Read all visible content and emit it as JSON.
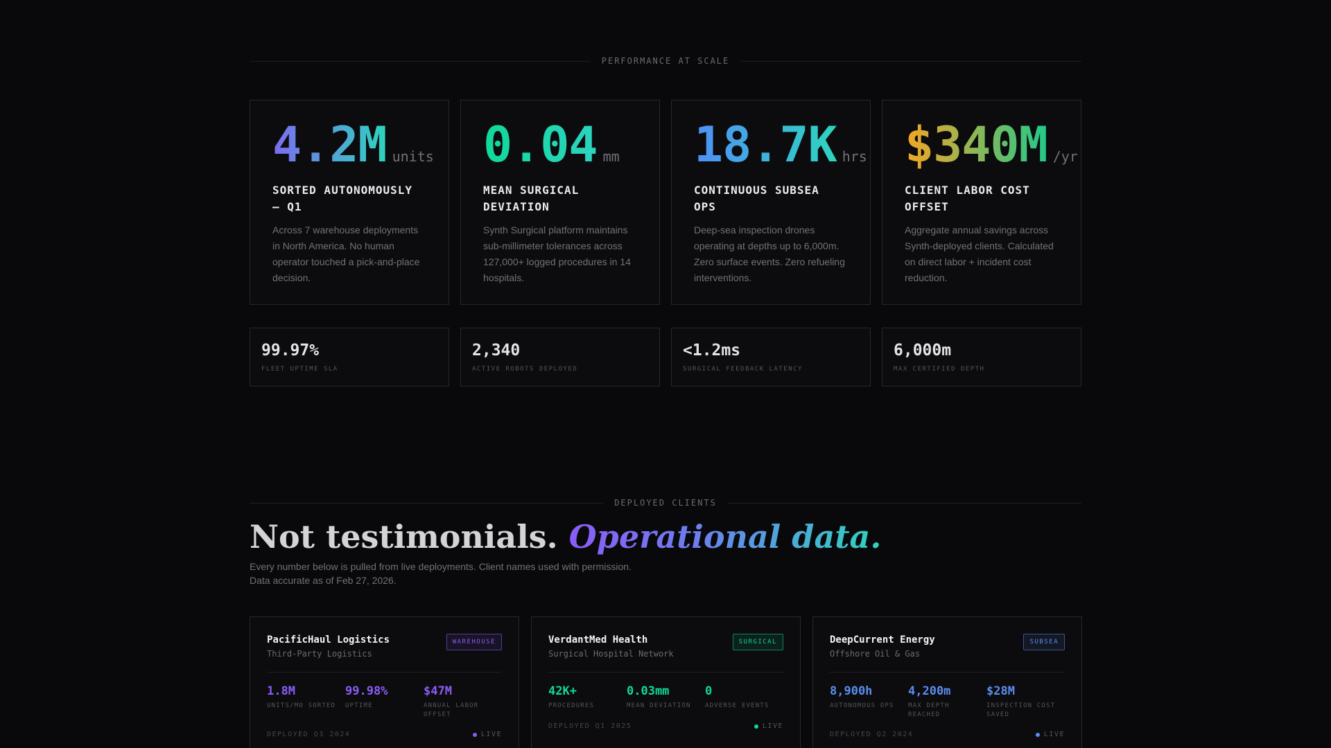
{
  "performance": {
    "section_label": "PERFORMANCE AT SCALE",
    "cards": [
      {
        "value": "4.2M",
        "unit": "units",
        "title": "SORTED AUTONOMOUSLY — Q1",
        "desc": "Across 7 warehouse deployments in North America. No human operator touched a pick-and-place decision.",
        "gradient": [
          "#7c6cf0",
          "#2dd4bf"
        ]
      },
      {
        "value": "0.04",
        "unit": "mm",
        "title": "MEAN SURGICAL DEVIATION",
        "desc": "Synth Surgical platform maintains sub-millimeter tolerances across 127,000+ logged procedures in 14 hospitals.",
        "gradient": [
          "#10d89a",
          "#2dd4bf"
        ]
      },
      {
        "value": "18.7K",
        "unit": "hrs",
        "title": "CONTINUOUS SUBSEA OPS",
        "desc": "Deep-sea inspection drones operating at depths up to 6,000m. Zero surface events. Zero refueling interventions.",
        "gradient": [
          "#4f8ff7",
          "#2dd4bf"
        ]
      },
      {
        "value": "$340M",
        "unit": "/yr",
        "title": "CLIENT LABOR COST OFFSET",
        "desc": "Aggregate annual savings across Synth-deployed clients. Calculated on direct labor + incident cost reduction.",
        "gradient": [
          "#f5a524",
          "#22c98a"
        ]
      }
    ],
    "metrics": [
      {
        "value": "99.97%",
        "label": "FLEET UPTIME SLA"
      },
      {
        "value": "2,340",
        "label": "ACTIVE ROBOTS DEPLOYED"
      },
      {
        "value": "<1.2ms",
        "label": "SURGICAL FEEDBACK LATENCY"
      },
      {
        "value": "6,000m",
        "label": "MAX CERTIFIED DEPTH"
      }
    ]
  },
  "clients": {
    "section_label": "DEPLOYED CLIENTS",
    "heading_plain": "Not testimonials. ",
    "heading_emphasis": "Operational data.",
    "sub_line1": "Every number below is pulled from live deployments. Client names used with permission.",
    "sub_line2": "Data accurate as of Feb 27, 2026.",
    "items": [
      {
        "name": "PacificHaul Logistics",
        "type": "Third-Party Logistics",
        "badge": "WAREHOUSE",
        "accent": "#8b5cf6",
        "metrics": [
          {
            "value": "1.8M",
            "label": "UNITS/MO SORTED"
          },
          {
            "value": "99.98%",
            "label": "UPTIME"
          },
          {
            "value": "$47M",
            "label": "ANNUAL LABOR OFFSET"
          }
        ],
        "deployed": "DEPLOYED Q3 2024",
        "status": "LIVE"
      },
      {
        "name": "VerdantMed Health",
        "type": "Surgical Hospital Network",
        "badge": "SURGICAL",
        "accent": "#10d89a",
        "metrics": [
          {
            "value": "42K+",
            "label": "PROCEDURES"
          },
          {
            "value": "0.03mm",
            "label": "MEAN DEVIATION"
          },
          {
            "value": "0",
            "label": "ADVERSE EVENTS"
          }
        ],
        "deployed": "DEPLOYED Q1 2025",
        "status": "LIVE"
      },
      {
        "name": "DeepCurrent Energy",
        "type": "Offshore Oil & Gas",
        "badge": "SUBSEA",
        "accent": "#5b8def",
        "metrics": [
          {
            "value": "8,900h",
            "label": "AUTONOMOUS OPS"
          },
          {
            "value": "4,200m",
            "label": "MAX DEPTH REACHED"
          },
          {
            "value": "$28M",
            "label": "INSPECTION COST SAVED"
          }
        ],
        "deployed": "DEPLOYED Q2 2024",
        "status": "LIVE"
      }
    ]
  }
}
